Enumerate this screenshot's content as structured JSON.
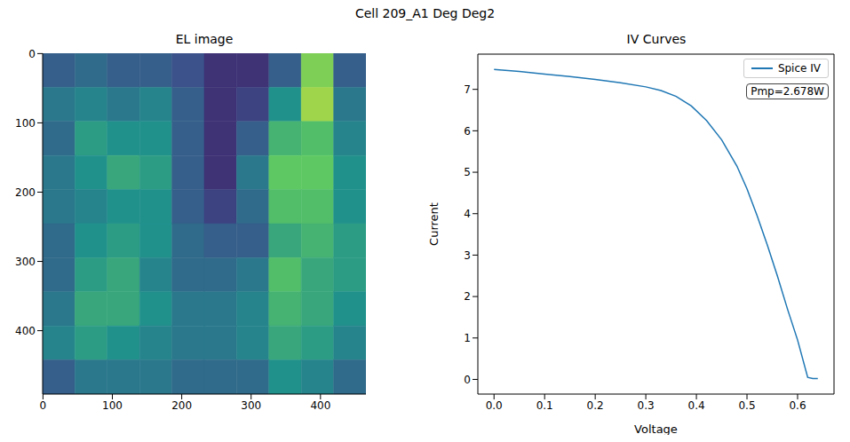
{
  "title": "Cell 209_A1 Deg Deg2",
  "chart_data": [
    {
      "type": "heatmap",
      "title": "EL image",
      "grid": false,
      "xlim": [
        -0.5,
        465.5
      ],
      "ylim": [
        491.5,
        -0.5
      ],
      "xticks": [
        0,
        100,
        200,
        300,
        400
      ],
      "yticks": [
        0,
        100,
        200,
        300,
        400
      ],
      "x_edges": [
        -0.5,
        46.1,
        92.7,
        139.3,
        185.9,
        232.5,
        279.1,
        325.7,
        372.3,
        418.9,
        465.5
      ],
      "y_edges": [
        -0.5,
        48.7,
        97.9,
        147.1,
        196.3,
        245.5,
        294.7,
        343.9,
        393.1,
        442.3,
        491.5
      ],
      "cells": [
        [
          0.3,
          0.35,
          0.3,
          0.3,
          0.25,
          0.15,
          0.15,
          0.3,
          0.8,
          0.3
        ],
        [
          0.4,
          0.45,
          0.4,
          0.45,
          0.3,
          0.15,
          0.2,
          0.5,
          0.85,
          0.4
        ],
        [
          0.35,
          0.55,
          0.5,
          0.5,
          0.3,
          0.15,
          0.3,
          0.65,
          0.7,
          0.45
        ],
        [
          0.4,
          0.5,
          0.6,
          0.55,
          0.3,
          0.15,
          0.4,
          0.75,
          0.75,
          0.5
        ],
        [
          0.4,
          0.45,
          0.5,
          0.5,
          0.3,
          0.2,
          0.35,
          0.7,
          0.7,
          0.5
        ],
        [
          0.35,
          0.5,
          0.55,
          0.5,
          0.35,
          0.3,
          0.3,
          0.6,
          0.65,
          0.55
        ],
        [
          0.35,
          0.55,
          0.6,
          0.45,
          0.35,
          0.35,
          0.4,
          0.7,
          0.6,
          0.55
        ],
        [
          0.4,
          0.6,
          0.6,
          0.5,
          0.4,
          0.4,
          0.45,
          0.65,
          0.6,
          0.5
        ],
        [
          0.45,
          0.55,
          0.5,
          0.45,
          0.4,
          0.4,
          0.45,
          0.6,
          0.55,
          0.45
        ],
        [
          0.3,
          0.4,
          0.4,
          0.4,
          0.35,
          0.35,
          0.35,
          0.5,
          0.45,
          0.35
        ]
      ]
    },
    {
      "type": "line",
      "title": "IV Curves",
      "x_label": "Voltage",
      "y_label": "Current",
      "grid": false,
      "legend": "upper right",
      "annotations": [
        "Pmp=2.678W"
      ],
      "xlim": [
        -0.032,
        0.672
      ],
      "ylim": [
        -0.354,
        7.85
      ],
      "xticks": [
        {
          "value": 0,
          "label": "0.0"
        },
        {
          "value": 0.1,
          "label": "0.1"
        },
        {
          "value": 0.2,
          "label": "0.2"
        },
        {
          "value": 0.3,
          "label": "0.3"
        },
        {
          "value": 0.4,
          "label": "0.4"
        },
        {
          "value": 0.5,
          "label": "0.5"
        },
        {
          "value": 0.6,
          "label": "0.6"
        }
      ],
      "yticks": [
        0,
        1,
        2,
        3,
        4,
        5,
        6,
        7
      ],
      "x": [
        0,
        0.05,
        0.1,
        0.15,
        0.2,
        0.25,
        0.3,
        0.33,
        0.36,
        0.39,
        0.42,
        0.45,
        0.48,
        0.5,
        0.52,
        0.54,
        0.56,
        0.58,
        0.6,
        0.62,
        0.63,
        0.64
      ],
      "series": [
        {
          "name": "Spice IV",
          "color": "#1f77b4",
          "values": [
            7.48,
            7.43,
            7.37,
            7.31,
            7.24,
            7.16,
            7.06,
            6.97,
            6.83,
            6.6,
            6.25,
            5.78,
            5.15,
            4.6,
            3.95,
            3.25,
            2.5,
            1.7,
            0.95,
            0.05,
            0.02,
            0.02
          ]
        }
      ]
    }
  ]
}
